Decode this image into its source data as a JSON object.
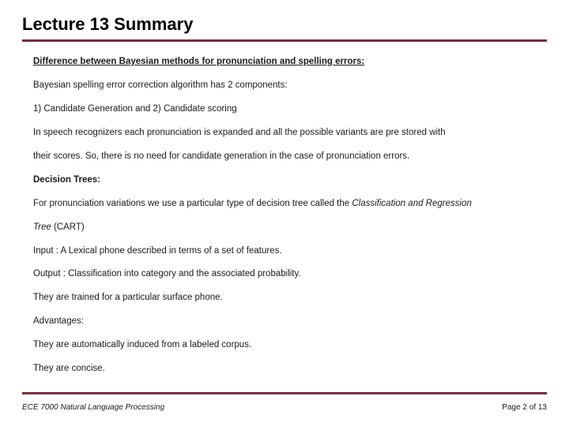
{
  "title": "Lecture 13 Summary",
  "colors": {
    "rule": "#7a2e3a",
    "text": "#1a1a1a",
    "background": "#ffffff"
  },
  "lines": [
    {
      "text": "Difference between Bayesian methods for pronunciation and spelling errors:",
      "bold": true,
      "underline": true
    },
    {
      "text": "Bayesian spelling error correction algorithm has 2 components:"
    },
    {
      "text": "1) Candidate Generation and  2) Candidate scoring"
    },
    {
      "text": "In speech recognizers each pronunciation is expanded and all the possible variants are pre stored with"
    },
    {
      "text": "their scores. So, there is no need for candidate generation in the case of pronunciation errors."
    },
    {
      "text": "Decision Trees:",
      "bold": true
    },
    {
      "segments": [
        {
          "text": "For pronunciation variations we use a particular type of decision tree called the "
        },
        {
          "text": "Classification and Regression",
          "italic": true
        }
      ]
    },
    {
      "segments": [
        {
          "text": "Tree",
          "italic": true
        },
        {
          "text": " (CART)"
        }
      ]
    },
    {
      "text": "Input : A Lexical phone described in terms of a set of features."
    },
    {
      "text": "Output : Classification into category and the associated probability."
    },
    {
      "text": "They are trained for a particular surface phone."
    },
    {
      "text": "Advantages:"
    },
    {
      "text": "They are automatically induced from a labeled corpus."
    },
    {
      "text": "They are concise."
    }
  ],
  "footer": {
    "course": "ECE 7000 Natural Language Processing",
    "page_label": "Page 2 of 13",
    "current_page": 2,
    "total_pages": 13
  }
}
